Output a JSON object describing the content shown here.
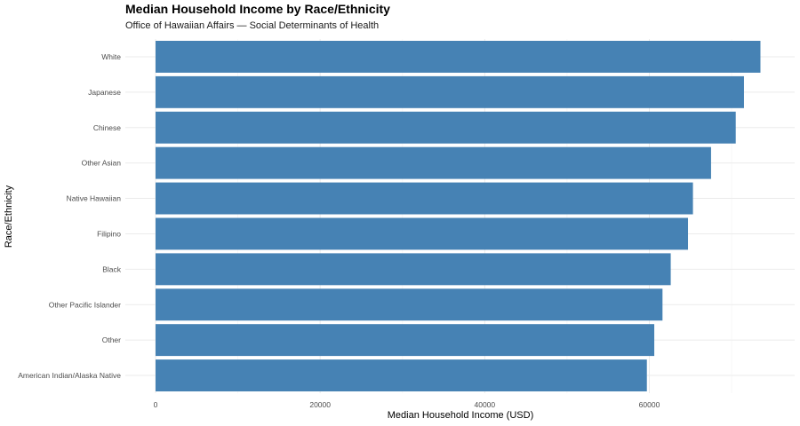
{
  "chart_data": {
    "type": "bar",
    "orientation": "horizontal",
    "title": "Median Household Income by Race/Ethnicity",
    "subtitle": "Office of Hawaiian Affairs — Social Determinants of Health",
    "xlabel": "Median Household Income (USD)",
    "ylabel": "Race/Ethnicity",
    "categories": [
      "White",
      "Japanese",
      "Chinese",
      "Other Asian",
      "Native Hawaiian",
      "Filipino",
      "Black",
      "Other Pacific Islander",
      "Other",
      "American Indian/Alaska Native"
    ],
    "values": [
      73500,
      71500,
      70500,
      67500,
      65300,
      64700,
      62600,
      61600,
      60600,
      59700
    ],
    "xlim": [
      0,
      77000
    ],
    "x_ticks": [
      0,
      20000,
      40000,
      60000
    ],
    "grid": true,
    "legend": "none",
    "bar_color": "#4682b4"
  }
}
